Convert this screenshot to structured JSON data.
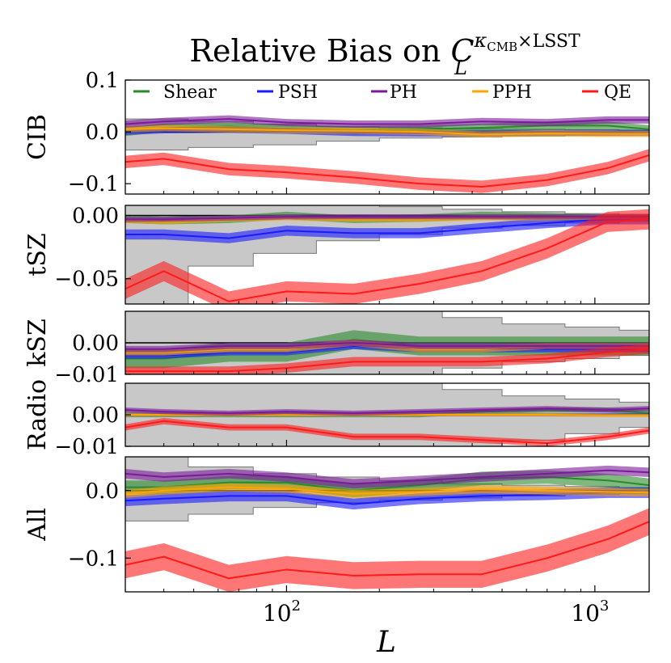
{
  "chart_data": {
    "type": "line",
    "title": {
      "main": "Relative Bias on ",
      "symbol": "C",
      "sub": "L",
      "sup_kappa": "κ",
      "sup_cmb": "CMB",
      "sup_rest": "×LSST"
    },
    "xlabel": "L",
    "xscale": "log",
    "xlim": [
      30,
      1500
    ],
    "xticks": [
      {
        "value": 100,
        "base": "10",
        "exp": "2"
      },
      {
        "value": 1000,
        "base": "10",
        "exp": "3"
      }
    ],
    "legend": [
      "Shear",
      "PSH",
      "PH",
      "PPH",
      "QE"
    ],
    "colors": {
      "Shear": "#2a8a2a",
      "PSH": "#1a1aff",
      "PH": "#7a1a9a",
      "PPH": "#ffa500",
      "QE": "#ff1a1a",
      "band": "#c8c8c8",
      "zero": "#000000"
    },
    "x": [
      30,
      40,
      65,
      100,
      165,
      270,
      430,
      700,
      1100,
      1500
    ],
    "panels": [
      {
        "name": "CIB",
        "ylabel": "CIB",
        "ylim": [
          -0.12,
          0.1
        ],
        "yticks": [
          {
            "v": 0.1,
            "l": "0.1"
          },
          {
            "v": 0.0,
            "l": "0.0"
          },
          {
            "v": -0.1,
            "l": "−0.1"
          }
        ],
        "band": {
          "edges": [
            30,
            48,
            78,
            125,
            200,
            320,
            500,
            800,
            1200,
            1500
          ],
          "upper": [
            0.025,
            0.02,
            0.015,
            0.01,
            0.008,
            0.006,
            0.005,
            0.004,
            0.003
          ],
          "lower": [
            -0.035,
            -0.03,
            -0.025,
            -0.018,
            -0.012,
            -0.01,
            -0.008,
            -0.006,
            -0.005
          ]
        },
        "series": [
          {
            "name": "Shear",
            "values": [
              0.0,
              0.008,
              0.01,
              0.006,
              0.003,
              0.005,
              0.008,
              0.012,
              0.012,
              0.005
            ],
            "err": 0.008
          },
          {
            "name": "PSH",
            "values": [
              0.0,
              0.003,
              0.004,
              0.002,
              -0.002,
              -0.003,
              -0.003,
              -0.002,
              -0.002,
              -0.002
            ],
            "err": 0.006
          },
          {
            "name": "PH",
            "values": [
              0.015,
              0.02,
              0.025,
              0.018,
              0.015,
              0.015,
              0.02,
              0.018,
              0.023,
              0.023
            ],
            "err": 0.007
          },
          {
            "name": "PPH",
            "values": [
              0.005,
              0.007,
              0.005,
              0.003,
              0.002,
              0.0,
              -0.005,
              -0.003,
              -0.004,
              -0.004
            ],
            "err": 0.006
          },
          {
            "name": "QE",
            "values": [
              -0.058,
              -0.052,
              -0.072,
              -0.078,
              -0.088,
              -0.1,
              -0.106,
              -0.093,
              -0.07,
              -0.045
            ],
            "err": 0.012
          }
        ]
      },
      {
        "name": "tSZ",
        "ylabel": "tSZ",
        "ylim": [
          -0.07,
          0.008
        ],
        "yticks": [
          {
            "v": 0.0,
            "l": "0.00"
          },
          {
            "v": -0.05,
            "l": "−0.05"
          }
        ],
        "band": {
          "edges": [
            30,
            48,
            78,
            125,
            200,
            320,
            500,
            800,
            1200,
            1500
          ],
          "upper": [
            0.008,
            0.008,
            0.008,
            0.008,
            0.007,
            0.005,
            0.003,
            0.0015,
            0.001
          ],
          "lower": [
            -0.07,
            -0.04,
            -0.03,
            -0.02,
            -0.015,
            -0.01,
            -0.008,
            -0.006,
            -0.004
          ]
        },
        "series": [
          {
            "name": "Shear",
            "values": [
              -0.003,
              -0.004,
              -0.003,
              0.0,
              -0.003,
              -0.002,
              0.0,
              -0.001,
              -0.002,
              -0.002
            ],
            "err": 0.003
          },
          {
            "name": "PSH",
            "values": [
              -0.015,
              -0.015,
              -0.018,
              -0.012,
              -0.014,
              -0.014,
              -0.01,
              -0.006,
              -0.003,
              -0.003
            ],
            "err": 0.004
          },
          {
            "name": "PH",
            "values": [
              -0.003,
              -0.003,
              -0.002,
              -0.001,
              -0.001,
              -0.001,
              -0.001,
              -0.001,
              -0.001,
              -0.001
            ],
            "err": 0.002
          },
          {
            "name": "PPH",
            "values": [
              -0.004,
              -0.005,
              -0.003,
              -0.002,
              -0.003,
              -0.003,
              -0.002,
              -0.002,
              -0.001,
              -0.001
            ],
            "err": 0.002
          },
          {
            "name": "QE",
            "values": [
              -0.058,
              -0.044,
              -0.068,
              -0.06,
              -0.062,
              -0.054,
              -0.044,
              -0.026,
              -0.005,
              -0.003
            ],
            "err": 0.008
          }
        ]
      },
      {
        "name": "kSZ",
        "ylabel": "kSZ",
        "ylim": [
          -0.01,
          0.01
        ],
        "yticks": [
          {
            "v": 0.0,
            "l": "0.00"
          },
          {
            "v": -0.01,
            "l": "−0.01"
          }
        ],
        "band": {
          "edges": [
            30,
            48,
            78,
            125,
            200,
            320,
            500,
            800,
            1200,
            1500
          ],
          "upper": [
            0.01,
            0.01,
            0.01,
            0.01,
            0.01,
            0.008,
            0.006,
            0.005,
            0.004
          ],
          "lower": [
            -0.01,
            -0.01,
            -0.01,
            -0.01,
            -0.01,
            -0.008,
            -0.006,
            -0.005,
            -0.004
          ]
        },
        "series": [
          {
            "name": "Shear",
            "values": [
              -0.005,
              -0.005,
              -0.003,
              -0.003,
              0.001,
              -0.001,
              -0.001,
              -0.001,
              -0.001,
              -0.001
            ],
            "err": 0.003
          },
          {
            "name": "PSH",
            "values": [
              -0.004,
              -0.004,
              -0.003,
              -0.003,
              -0.001,
              -0.002,
              -0.002,
              -0.002,
              -0.002,
              -0.002
            ],
            "err": 0.001
          },
          {
            "name": "PH",
            "values": [
              -0.002,
              -0.002,
              -0.001,
              -0.001,
              0.0,
              -0.001,
              -0.001,
              -0.001,
              -0.001,
              -0.001
            ],
            "err": 0.001
          },
          {
            "name": "PPH",
            "values": [
              -0.003,
              -0.003,
              -0.002,
              -0.002,
              0.0,
              -0.002,
              -0.002,
              -0.001,
              -0.001,
              -0.001
            ],
            "err": 0.001
          },
          {
            "name": "QE",
            "values": [
              -0.009,
              -0.009,
              -0.009,
              -0.008,
              -0.006,
              -0.006,
              -0.006,
              -0.005,
              -0.003,
              -0.002
            ],
            "err": 0.0015
          }
        ]
      },
      {
        "name": "Radio",
        "ylabel": "Radio",
        "ylim": [
          -0.01,
          0.01
        ],
        "yticks": [
          {
            "v": 0.0,
            "l": "0.00"
          },
          {
            "v": -0.01,
            "l": "−0.01"
          }
        ],
        "band": {
          "edges": [
            30,
            48,
            78,
            125,
            200,
            320,
            500,
            800,
            1200,
            1500
          ],
          "upper": [
            0.01,
            0.01,
            0.01,
            0.01,
            0.01,
            0.008,
            0.006,
            0.005,
            0.004
          ],
          "lower": [
            -0.01,
            -0.01,
            -0.01,
            -0.01,
            -0.01,
            -0.01,
            -0.008,
            -0.006,
            -0.004
          ]
        },
        "series": [
          {
            "name": "Shear",
            "values": [
              0.0,
              0.0,
              0.0,
              0.0,
              0.0,
              0.0,
              0.001,
              0.0015,
              0.0015,
              0.0005
            ],
            "err": 0.0008
          },
          {
            "name": "PSH",
            "values": [
              0.0,
              0.0,
              0.0,
              0.0,
              0.0,
              0.0,
              0.0,
              0.0,
              0.0,
              0.0
            ],
            "err": 0.0005
          },
          {
            "name": "PH",
            "values": [
              0.0015,
              0.001,
              0.0005,
              0.001,
              0.0005,
              0.001,
              0.0015,
              0.002,
              0.0015,
              0.002
            ],
            "err": 0.0008
          },
          {
            "name": "PPH",
            "values": [
              0.0,
              0.0,
              0.0,
              0.0,
              0.0,
              0.0,
              0.0,
              0.0,
              -0.0002,
              -0.0002
            ],
            "err": 0.0005
          },
          {
            "name": "QE",
            "values": [
              -0.004,
              -0.002,
              -0.004,
              -0.004,
              -0.007,
              -0.007,
              -0.008,
              -0.009,
              -0.007,
              -0.005
            ],
            "err": 0.001
          }
        ]
      },
      {
        "name": "All",
        "ylabel": "All",
        "ylim": [
          -0.15,
          0.05
        ],
        "yticks": [
          {
            "v": 0.0,
            "l": "0.0"
          },
          {
            "v": -0.1,
            "l": "−0.1"
          }
        ],
        "band": {
          "edges": [
            30,
            48,
            78,
            125,
            200,
            320,
            500,
            800,
            1200,
            1500
          ],
          "upper": [
            0.05,
            0.035,
            0.025,
            0.02,
            0.015,
            0.01,
            0.008,
            0.006,
            0.004
          ],
          "lower": [
            -0.045,
            -0.035,
            -0.025,
            -0.018,
            -0.014,
            -0.011,
            -0.008,
            -0.006,
            -0.004
          ]
        },
        "series": [
          {
            "name": "Shear",
            "values": [
              0.005,
              0.005,
              0.012,
              0.012,
              0.0,
              0.008,
              0.018,
              0.02,
              0.015,
              0.008
            ],
            "err": 0.01
          },
          {
            "name": "PSH",
            "values": [
              -0.015,
              -0.012,
              -0.008,
              -0.008,
              -0.02,
              -0.012,
              -0.008,
              -0.006,
              -0.003,
              -0.003
            ],
            "err": 0.008
          },
          {
            "name": "PH",
            "values": [
              0.025,
              0.02,
              0.025,
              0.02,
              0.01,
              0.015,
              0.02,
              0.025,
              0.03,
              0.027
            ],
            "err": 0.007
          },
          {
            "name": "PPH",
            "values": [
              -0.005,
              0.0,
              0.005,
              0.003,
              -0.005,
              -0.002,
              0.002,
              0.0,
              -0.002,
              -0.003
            ],
            "err": 0.006
          },
          {
            "name": "QE",
            "values": [
              -0.11,
              -0.098,
              -0.13,
              -0.117,
              -0.126,
              -0.124,
              -0.124,
              -0.1,
              -0.072,
              -0.046
            ],
            "err": 0.02
          }
        ]
      }
    ]
  }
}
